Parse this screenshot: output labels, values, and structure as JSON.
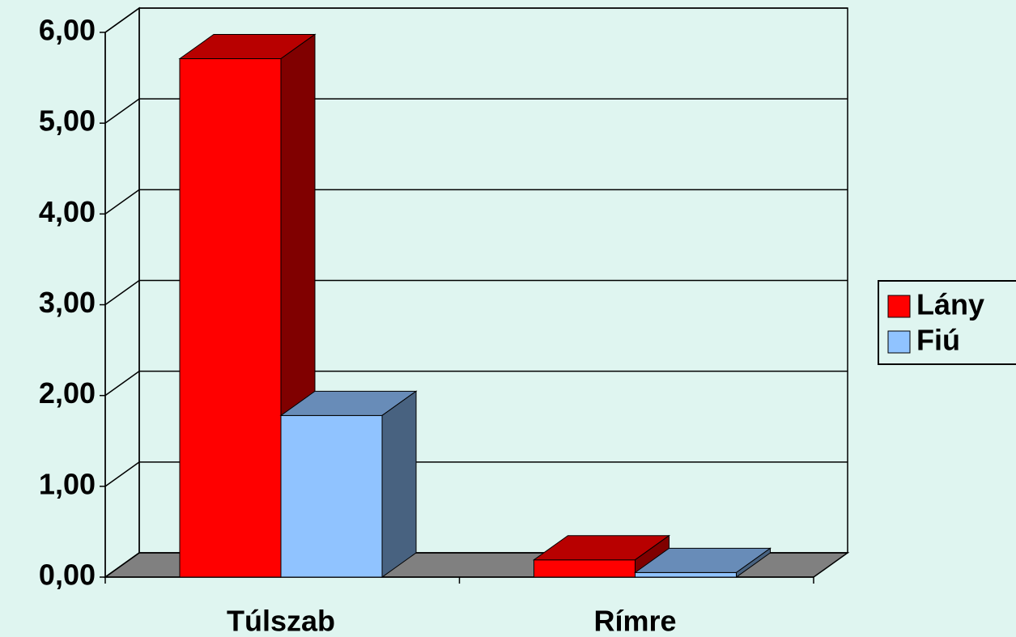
{
  "chart_data": {
    "type": "bar3d",
    "categories": [
      "Túlszab",
      "Rímre"
    ],
    "series": [
      {
        "name": "Lány",
        "color": "#ff0000",
        "values": [
          5.71,
          0.19
        ]
      },
      {
        "name": "Fiú",
        "color": "#90c3ff",
        "values": [
          1.78,
          0.05
        ]
      }
    ],
    "ylim": [
      0,
      6
    ],
    "yticks": [
      {
        "value": 0,
        "label": "0,00"
      },
      {
        "value": 1,
        "label": "1,00"
      },
      {
        "value": 2,
        "label": "2,00"
      },
      {
        "value": 3,
        "label": "3,00"
      },
      {
        "value": 4,
        "label": "4,00"
      },
      {
        "value": 5,
        "label": "5,00"
      },
      {
        "value": 6,
        "label": "6,00"
      }
    ],
    "grid": true,
    "legend": "right"
  }
}
